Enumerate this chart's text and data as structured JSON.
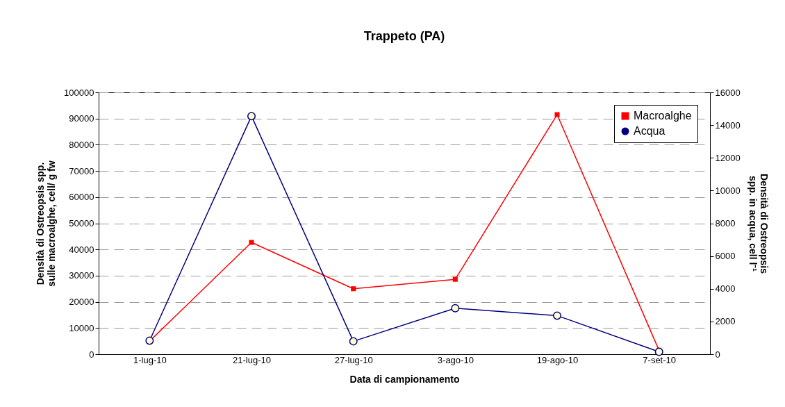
{
  "chart_data": {
    "type": "line",
    "title": "Trappeto (PA)",
    "xlabel": "Data di campionamento",
    "ylabel": "Densità di Ostreopsis spp. sulle macroalghe, cell/ g fw",
    "y2label": "Densità di Ostreopsis spp. in acqua, cell l⁻¹",
    "categories": [
      "1-lug-10",
      "21-lug-10",
      "27-lug-10",
      "3-ago-10",
      "19-ago-10",
      "7-set-10"
    ],
    "series": [
      {
        "name": "Macroalghe",
        "color": "#ff0000",
        "marker": "square",
        "values": [
          5000,
          42700,
          25000,
          28600,
          91500,
          1500
        ]
      },
      {
        "name": "Acqua",
        "color": "#000080",
        "marker": "circle",
        "axis": "y2",
        "values": [
          830,
          14550,
          790,
          2810,
          2360,
          150
        ]
      }
    ],
    "ylim": [
      0,
      100000
    ],
    "yticks": [
      0,
      10000,
      20000,
      30000,
      40000,
      50000,
      60000,
      70000,
      80000,
      90000,
      100000
    ],
    "y2lim": [
      0,
      16000
    ],
    "y2ticks": [
      0,
      2000,
      4000,
      6000,
      8000,
      10000,
      12000,
      14000,
      16000
    ],
    "grid": "y",
    "legend": "top right"
  }
}
